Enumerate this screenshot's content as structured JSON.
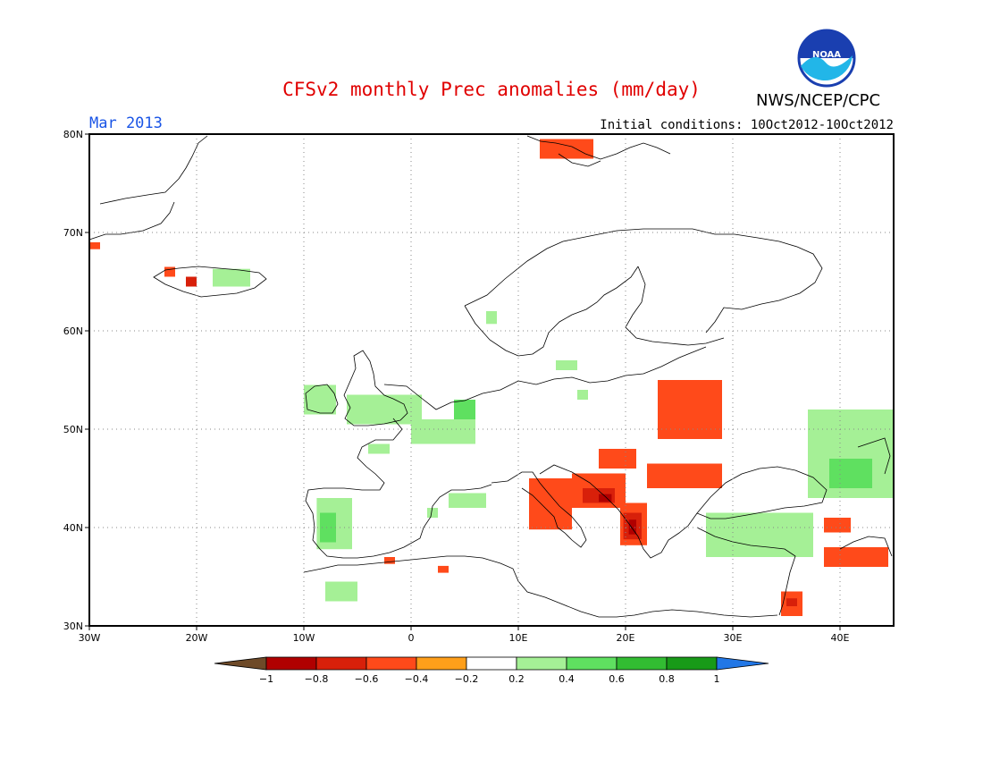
{
  "title": "CFSv2 monthly Prec anomalies (mm/day)",
  "agency": "NWS/NCEP/CPC",
  "logo_text": "NOAA",
  "forecast_month": "Mar 2013",
  "initial_conditions": "Initial conditions: 10Oct2012-10Oct2012",
  "map": {
    "lon_range": [
      -30,
      45
    ],
    "lat_range": [
      30,
      80
    ],
    "lat_ticks": [
      {
        "value": 80,
        "label": "80N"
      },
      {
        "value": 70,
        "label": "70N"
      },
      {
        "value": 60,
        "label": "60N"
      },
      {
        "value": 50,
        "label": "50N"
      },
      {
        "value": 40,
        "label": "40N"
      },
      {
        "value": 30,
        "label": "30N"
      }
    ],
    "lon_ticks": [
      {
        "value": -30,
        "label": "30W"
      },
      {
        "value": -20,
        "label": "20W"
      },
      {
        "value": -10,
        "label": "10W"
      },
      {
        "value": 0,
        "label": "0"
      },
      {
        "value": 10,
        "label": "10E"
      },
      {
        "value": 20,
        "label": "20E"
      },
      {
        "value": 30,
        "label": "30E"
      },
      {
        "value": 40,
        "label": "40E"
      }
    ],
    "grid": "dotted"
  },
  "colorbar": {
    "ticks": [
      "-1",
      "-0.8",
      "-0.6",
      "-0.4",
      "-0.2",
      "0.2",
      "0.4",
      "0.6",
      "0.8",
      "1"
    ],
    "colors": [
      "#6e4a28",
      "#b00000",
      "#d8200a",
      "#ff4a1a",
      "#ff9f1a",
      "#ffffff",
      "#a5f096",
      "#5fe060",
      "#32bd32",
      "#189a18",
      "#2277e6"
    ]
  },
  "anomaly_regions": [
    {
      "name": "Greenland",
      "lon": [
        -30,
        -29
      ],
      "lat": [
        68.3,
        69
      ],
      "class": "-0.4"
    },
    {
      "name": "Iceland west",
      "lon": [
        -23,
        -22
      ],
      "lat": [
        65.5,
        66.5
      ],
      "class": "-0.4"
    },
    {
      "name": "Iceland west",
      "lon": [
        -21,
        -20
      ],
      "lat": [
        64.5,
        65.5
      ],
      "class": "-0.6"
    },
    {
      "name": "Iceland east",
      "lon": [
        -18.5,
        -15
      ],
      "lat": [
        64.5,
        66.3
      ],
      "class": "0.2"
    },
    {
      "name": "Svalbard",
      "lon": [
        12,
        17
      ],
      "lat": [
        77.5,
        79.5
      ],
      "class": "-0.4"
    },
    {
      "name": "Norway coast",
      "lon": [
        7,
        8
      ],
      "lat": [
        60.7,
        62
      ],
      "class": "0.2"
    },
    {
      "name": "Baltic",
      "lon": [
        13.5,
        15.5
      ],
      "lat": [
        56,
        57
      ],
      "class": "0.2"
    },
    {
      "name": "Poland",
      "lon": [
        15.5,
        16.5
      ],
      "lat": [
        53,
        54
      ],
      "class": "0.2"
    },
    {
      "name": "Ireland",
      "lon": [
        -10,
        -7
      ],
      "lat": [
        51.5,
        54.5
      ],
      "class": "0.2"
    },
    {
      "name": "Britain",
      "lon": [
        -6,
        1
      ],
      "lat": [
        50.5,
        53.5
      ],
      "class": "0.2"
    },
    {
      "name": "France north",
      "lon": [
        0,
        6
      ],
      "lat": [
        48.5,
        51
      ],
      "class": "0.2"
    },
    {
      "name": "Benelux",
      "lon": [
        4,
        6
      ],
      "lat": [
        51,
        53
      ],
      "class": "0.4"
    },
    {
      "name": "Brittany",
      "lon": [
        -4,
        -2
      ],
      "lat": [
        47.5,
        48.5
      ],
      "class": "0.2"
    },
    {
      "name": "South France",
      "lon": [
        3.5,
        7
      ],
      "lat": [
        42,
        43.5
      ],
      "class": "0.2"
    },
    {
      "name": "Mediterranean",
      "lon": [
        1.5,
        2.5
      ],
      "lat": [
        41,
        42
      ],
      "class": "0.2"
    },
    {
      "name": "Iberia west",
      "lon": [
        -8.8,
        -5.5
      ],
      "lat": [
        37.8,
        43
      ],
      "class": "0.2"
    },
    {
      "name": "Iberia west core",
      "lon": [
        -8.5,
        -7
      ],
      "lat": [
        38.5,
        41.5
      ],
      "class": "0.4"
    },
    {
      "name": "Morocco",
      "lon": [
        -8,
        -5
      ],
      "lat": [
        32.5,
        34.5
      ],
      "class": "0.2"
    },
    {
      "name": "Spain south",
      "lon": [
        -2.5,
        -1.5
      ],
      "lat": [
        36.3,
        37
      ],
      "class": "-0.4"
    },
    {
      "name": "Algeria",
      "lon": [
        2.5,
        3.5
      ],
      "lat": [
        35.4,
        36.1
      ],
      "class": "-0.4"
    },
    {
      "name": "Italy",
      "lon": [
        11,
        15
      ],
      "lat": [
        39.8,
        45
      ],
      "class": "-0.4"
    },
    {
      "name": "Adriatic",
      "lon": [
        15,
        20
      ],
      "lat": [
        42,
        45.5
      ],
      "class": "-0.4"
    },
    {
      "name": "Adriatic",
      "lon": [
        16,
        19
      ],
      "lat": [
        42.5,
        44
      ],
      "class": "-0.6"
    },
    {
      "name": "Adriatic",
      "lon": [
        17.5,
        18.7
      ],
      "lat": [
        42.6,
        43.4
      ],
      "class": "-0.8"
    },
    {
      "name": "Albania Greece",
      "lon": [
        19.5,
        22
      ],
      "lat": [
        38.2,
        42.5
      ],
      "class": "-0.4"
    },
    {
      "name": "Albania Greece",
      "lon": [
        19.8,
        21.5
      ],
      "lat": [
        38.8,
        41.5
      ],
      "class": "-0.6"
    },
    {
      "name": "Albania Greece",
      "lon": [
        20.3,
        21
      ],
      "lat": [
        39.3,
        40.8
      ],
      "class": "-0.8"
    },
    {
      "name": "Hungary",
      "lon": [
        17.5,
        21
      ],
      "lat": [
        46,
        48
      ],
      "class": "-0.4"
    },
    {
      "name": "Romania",
      "lon": [
        22,
        29
      ],
      "lat": [
        44,
        46.5
      ],
      "class": "-0.4"
    },
    {
      "name": "Ukraine",
      "lon": [
        23,
        29
      ],
      "lat": [
        49,
        55
      ],
      "class": "-0.4"
    },
    {
      "name": "Anatolia",
      "lon": [
        27.5,
        37.5
      ],
      "lat": [
        37,
        41.5
      ],
      "class": "0.2"
    },
    {
      "name": "Middle East",
      "lon": [
        38.5,
        44.5
      ],
      "lat": [
        36,
        38
      ],
      "class": "-0.4"
    },
    {
      "name": "Middle East",
      "lon": [
        38.5,
        41
      ],
      "lat": [
        39.5,
        41
      ],
      "class": "-0.4"
    },
    {
      "name": "Levant",
      "lon": [
        34.5,
        36.5
      ],
      "lat": [
        31,
        33.5
      ],
      "class": "-0.4"
    },
    {
      "name": "Levant",
      "lon": [
        35,
        36
      ],
      "lat": [
        32,
        32.8
      ],
      "class": "-0.6"
    },
    {
      "name": "Russia",
      "lon": [
        37,
        45
      ],
      "lat": [
        43,
        52
      ],
      "class": "0.2"
    },
    {
      "name": "Russia",
      "lon": [
        39,
        43
      ],
      "lat": [
        44,
        47
      ],
      "class": "0.4"
    }
  ]
}
